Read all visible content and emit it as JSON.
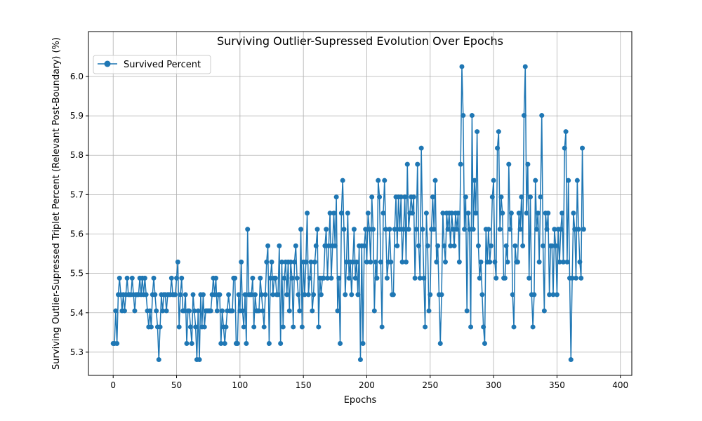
{
  "chart_data": {
    "type": "line",
    "title": "Surviving Outlier-Supressed Evolution Over Epochs",
    "xlabel": "Epochs",
    "ylabel": "Surviving Outlier-Supressed Triplet Percent (Relevant Post-Boundary) (%)",
    "xlim": [
      -19.5,
      409
    ],
    "ylim": [
      5.241,
      6.114
    ],
    "xticks": [
      0,
      50,
      100,
      150,
      200,
      250,
      300,
      350,
      400
    ],
    "yticks": [
      5.3,
      5.4,
      5.5,
      5.6,
      5.7,
      5.8,
      5.9,
      6.0
    ],
    "ytick_labels": [
      "5.3",
      "5.4",
      "5.5",
      "5.6",
      "5.7",
      "5.8",
      "5.9",
      "6.0"
    ],
    "grid": true,
    "legend_position": "upper-left",
    "color": "#1f77b4",
    "series": [
      {
        "name": "Survived Percent",
        "marker": "circle",
        "x_start": 0,
        "values": [
          5.322,
          5.322,
          5.405,
          5.322,
          5.446,
          5.488,
          5.446,
          5.405,
          5.446,
          5.405,
          5.446,
          5.488,
          5.446,
          5.446,
          5.446,
          5.488,
          5.446,
          5.405,
          5.446,
          5.446,
          5.446,
          5.488,
          5.446,
          5.488,
          5.446,
          5.488,
          5.446,
          5.405,
          5.364,
          5.405,
          5.364,
          5.446,
          5.488,
          5.446,
          5.405,
          5.364,
          5.281,
          5.364,
          5.446,
          5.405,
          5.446,
          5.446,
          5.405,
          5.446,
          5.446,
          5.446,
          5.488,
          5.446,
          5.446,
          5.446,
          5.488,
          5.529,
          5.364,
          5.446,
          5.488,
          5.405,
          5.405,
          5.446,
          5.322,
          5.405,
          5.405,
          5.364,
          5.322,
          5.446,
          5.405,
          5.364,
          5.281,
          5.405,
          5.281,
          5.446,
          5.364,
          5.446,
          5.364,
          5.405,
          5.405,
          5.405,
          5.405,
          5.405,
          5.446,
          5.488,
          5.446,
          5.488,
          5.405,
          5.446,
          5.446,
          5.322,
          5.405,
          5.364,
          5.322,
          5.364,
          5.405,
          5.446,
          5.405,
          5.405,
          5.405,
          5.488,
          5.488,
          5.322,
          5.322,
          5.446,
          5.405,
          5.529,
          5.405,
          5.364,
          5.446,
          5.322,
          5.612,
          5.446,
          5.446,
          5.446,
          5.488,
          5.364,
          5.446,
          5.405,
          5.405,
          5.405,
          5.488,
          5.446,
          5.405,
          5.364,
          5.446,
          5.529,
          5.57,
          5.322,
          5.488,
          5.529,
          5.446,
          5.488,
          5.488,
          5.446,
          5.446,
          5.57,
          5.322,
          5.529,
          5.364,
          5.488,
          5.529,
          5.446,
          5.529,
          5.405,
          5.529,
          5.488,
          5.364,
          5.529,
          5.57,
          5.488,
          5.446,
          5.405,
          5.612,
          5.364,
          5.529,
          5.446,
          5.529,
          5.653,
          5.446,
          5.488,
          5.529,
          5.405,
          5.446,
          5.529,
          5.57,
          5.612,
          5.364,
          5.488,
          5.446,
          5.488,
          5.488,
          5.57,
          5.612,
          5.488,
          5.57,
          5.653,
          5.488,
          5.57,
          5.653,
          5.57,
          5.694,
          5.405,
          5.488,
          5.322,
          5.653,
          5.736,
          5.612,
          5.446,
          5.529,
          5.653,
          5.488,
          5.529,
          5.446,
          5.529,
          5.612,
          5.488,
          5.529,
          5.446,
          5.57,
          5.281,
          5.57,
          5.322,
          5.57,
          5.612,
          5.529,
          5.653,
          5.612,
          5.529,
          5.694,
          5.612,
          5.405,
          5.529,
          5.488,
          5.736,
          5.694,
          5.529,
          5.364,
          5.653,
          5.736,
          5.612,
          5.488,
          5.529,
          5.612,
          5.529,
          5.446,
          5.446,
          5.612,
          5.694,
          5.57,
          5.694,
          5.612,
          5.694,
          5.529,
          5.612,
          5.694,
          5.529,
          5.777,
          5.612,
          5.653,
          5.694,
          5.653,
          5.694,
          5.488,
          5.612,
          5.777,
          5.57,
          5.488,
          5.818,
          5.612,
          5.488,
          5.364,
          5.653,
          5.57,
          5.405,
          5.446,
          5.612,
          5.694,
          5.612,
          5.736,
          5.529,
          5.57,
          5.446,
          5.322,
          5.446,
          5.653,
          5.57,
          5.529,
          5.653,
          5.612,
          5.653,
          5.57,
          5.653,
          5.612,
          5.57,
          5.653,
          5.612,
          5.653,
          5.529,
          5.777,
          6.025,
          5.901,
          5.612,
          5.694,
          5.405,
          5.653,
          5.612,
          5.364,
          5.901,
          5.612,
          5.736,
          5.653,
          5.86,
          5.57,
          5.488,
          5.529,
          5.446,
          5.364,
          5.322,
          5.612,
          5.529,
          5.612,
          5.529,
          5.57,
          5.694,
          5.736,
          5.529,
          5.488,
          5.818,
          5.86,
          5.612,
          5.694,
          5.653,
          5.488,
          5.488,
          5.57,
          5.529,
          5.777,
          5.612,
          5.653,
          5.446,
          5.364,
          5.57,
          5.529,
          5.529,
          5.653,
          5.612,
          5.694,
          5.57,
          5.901,
          6.025,
          5.653,
          5.777,
          5.488,
          5.694,
          5.446,
          5.364,
          5.446,
          5.736,
          5.612,
          5.653,
          5.529,
          5.694,
          5.901,
          5.57,
          5.405,
          5.653,
          5.612,
          5.653,
          5.446,
          5.57,
          5.57,
          5.446,
          5.612,
          5.57,
          5.446,
          5.612,
          5.529,
          5.612,
          5.653,
          5.529,
          5.818,
          5.86,
          5.529,
          5.736,
          5.488,
          5.281,
          5.488,
          5.653,
          5.612,
          5.488,
          5.736,
          5.612,
          5.529,
          5.488,
          5.818,
          5.612
        ]
      }
    ]
  }
}
